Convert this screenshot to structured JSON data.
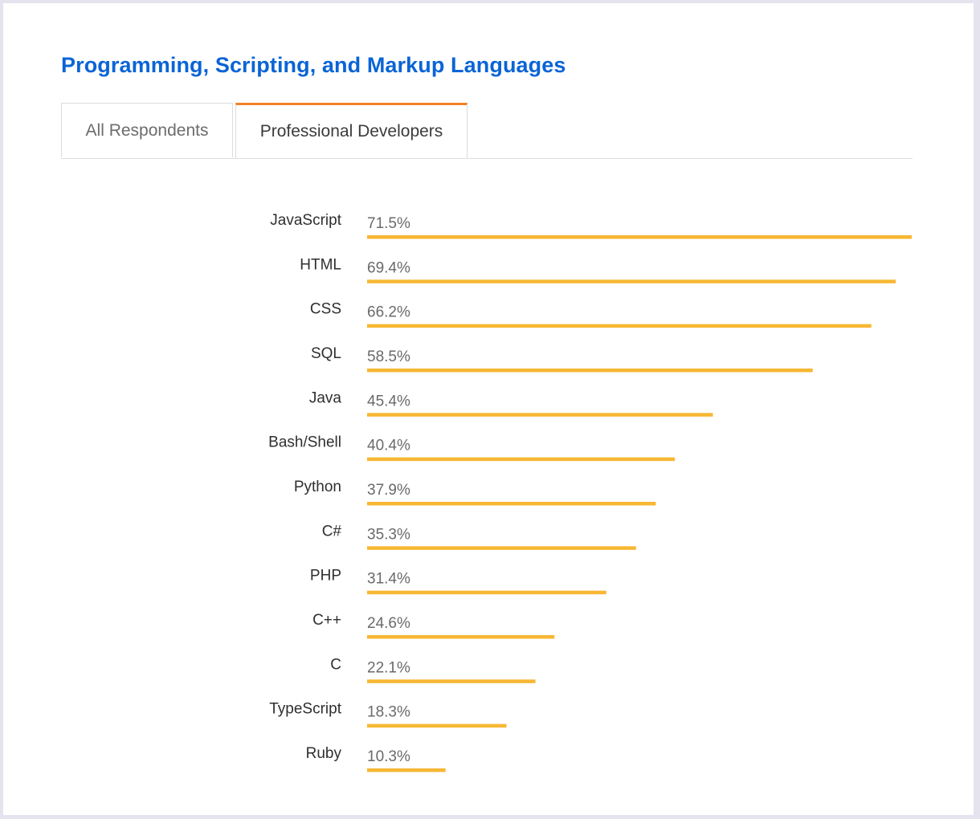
{
  "title": "Programming, Scripting, and Markup Languages",
  "tabs": [
    {
      "label": "All Respondents",
      "active": false
    },
    {
      "label": "Professional Developers",
      "active": true
    }
  ],
  "colors": {
    "title": "#0a64d6",
    "bar": "#f7b733",
    "active_tab_accent": "#f48024"
  },
  "chart_data": {
    "type": "bar",
    "orientation": "horizontal",
    "categories": [
      "JavaScript",
      "HTML",
      "CSS",
      "SQL",
      "Java",
      "Bash/Shell",
      "Python",
      "C#",
      "PHP",
      "C++",
      "C",
      "TypeScript",
      "Ruby"
    ],
    "values": [
      71.5,
      69.4,
      66.2,
      58.5,
      45.4,
      40.4,
      37.9,
      35.3,
      31.4,
      24.6,
      22.1,
      18.3,
      10.3
    ],
    "value_labels": [
      "71.5%",
      "69.4%",
      "66.2%",
      "58.5%",
      "45.4%",
      "40.4%",
      "37.9%",
      "35.3%",
      "31.4%",
      "24.6%",
      "22.1%",
      "18.3%",
      "10.3%"
    ],
    "unit": "%",
    "title": "Programming, Scripting, and Markup Languages",
    "xlabel": "",
    "ylabel": "",
    "grid": false,
    "legend": "none"
  }
}
